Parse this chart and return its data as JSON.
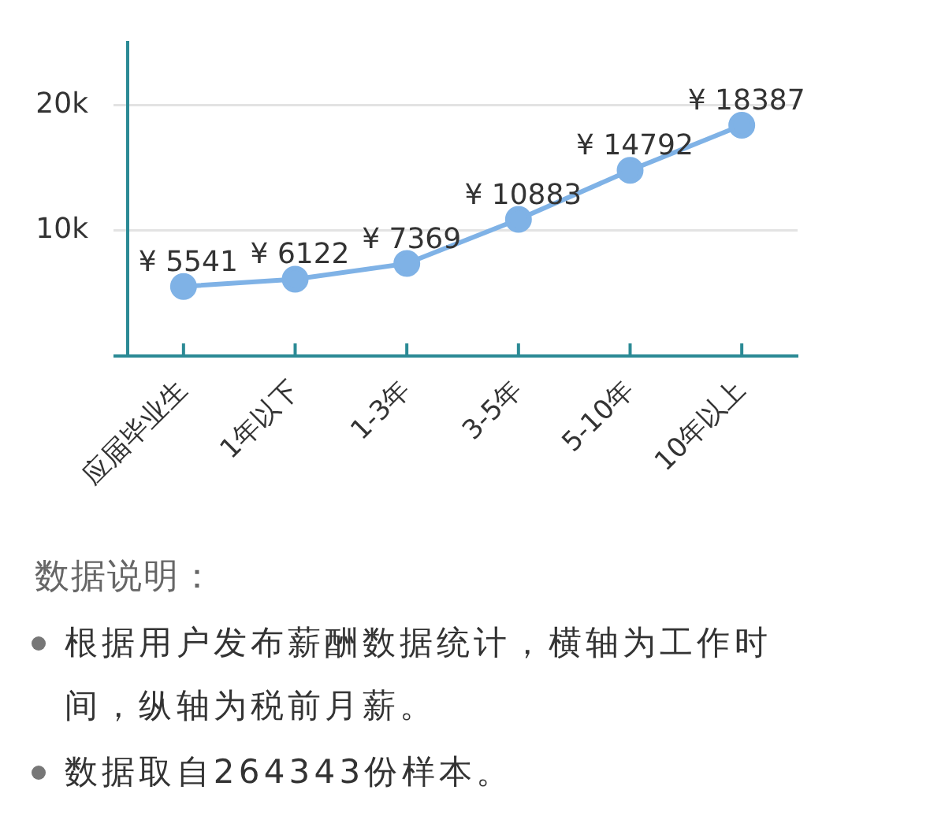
{
  "chart_data": {
    "type": "line",
    "categories": [
      "应届毕业生",
      "1年以下",
      "1-3年",
      "3-5年",
      "5-10年",
      "10年以上"
    ],
    "series": [
      {
        "color": "#7fb2e6",
        "values": [
          5541,
          6122,
          7369,
          10883,
          14792,
          18387
        ],
        "value_labels": [
          "¥ 5541",
          "¥ 6122",
          "¥ 7369",
          "¥ 10883",
          "¥ 14792",
          "¥ 18387"
        ]
      }
    ],
    "ylim": [
      0,
      25000
    ],
    "yticks": [
      {
        "value": 10000,
        "label": "10k"
      },
      {
        "value": 20000,
        "label": "20k"
      }
    ],
    "grid": "y",
    "marker": "circle",
    "line_style": "solid",
    "annotations": [
      "数据说明：",
      "根据用户发布薪酬数据统计，横轴为工作时间，纵轴为税前月薪。",
      "数据取自264343份样本。"
    ]
  }
}
